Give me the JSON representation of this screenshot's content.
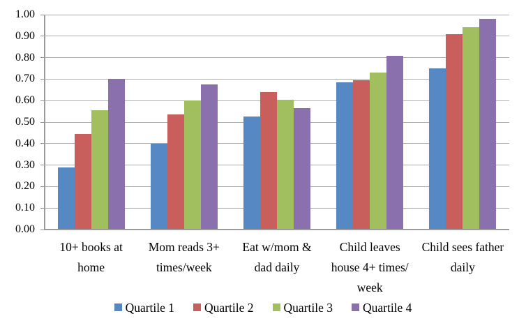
{
  "chart_data": {
    "type": "bar",
    "title": "",
    "xlabel": "",
    "ylabel": "",
    "categories": [
      [
        "10+ books at",
        "home"
      ],
      [
        "Mom reads 3+",
        "times/week"
      ],
      [
        "Eat w/mom &",
        "dad daily"
      ],
      [
        "Child leaves",
        "house 4+ times/",
        "week"
      ],
      [
        "Child sees father",
        "daily"
      ]
    ],
    "series": [
      {
        "name": "Quartile 1",
        "color": "#5688C3",
        "values": [
          0.29,
          0.4,
          0.525,
          0.685,
          0.75
        ]
      },
      {
        "name": "Quartile 2",
        "color": "#C85F5C",
        "values": [
          0.445,
          0.535,
          0.64,
          0.695,
          0.91
        ]
      },
      {
        "name": "Quartile 3",
        "color": "#A2BF60",
        "values": [
          0.555,
          0.6,
          0.605,
          0.73,
          0.94
        ]
      },
      {
        "name": "Quartile 4",
        "color": "#8A70AC",
        "values": [
          0.7,
          0.675,
          0.565,
          0.81,
          0.98
        ]
      }
    ],
    "ylim": [
      0.0,
      1.0
    ],
    "ytick_step": 0.1,
    "ytick_labels": [
      "0.00",
      "0.10",
      "0.20",
      "0.30",
      "0.40",
      "0.50",
      "0.60",
      "0.70",
      "0.80",
      "0.90",
      "1.00"
    ],
    "grid": true,
    "legend_position": "bottom",
    "colors": {
      "gridline": "#ababab",
      "axis": "#9b9b9b",
      "text": "#000000",
      "background": "#ffffff"
    }
  }
}
